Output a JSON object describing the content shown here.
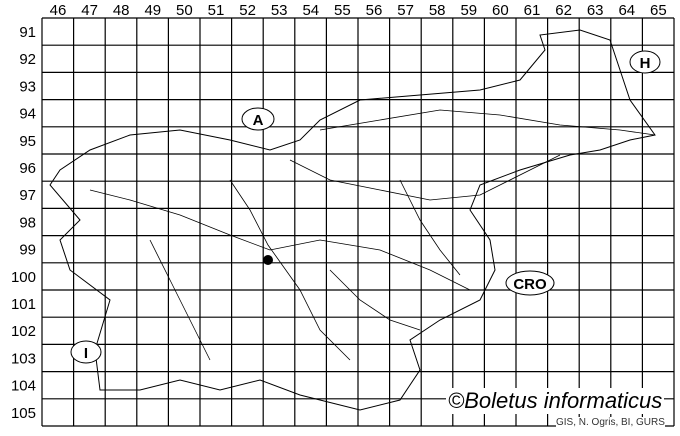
{
  "map": {
    "columns": [
      "46",
      "47",
      "48",
      "49",
      "50",
      "51",
      "52",
      "53",
      "54",
      "55",
      "56",
      "57",
      "58",
      "59",
      "60",
      "61",
      "62",
      "63",
      "64",
      "65"
    ],
    "rows": [
      "91",
      "92",
      "93",
      "94",
      "95",
      "96",
      "97",
      "98",
      "99",
      "100",
      "101",
      "102",
      "103",
      "104",
      "105"
    ],
    "labels": {
      "austria": "A",
      "hungary": "H",
      "croatia": "CRO",
      "italy": "I"
    },
    "credit": "©Boletus informaticus",
    "source": "GIS, N. Ogris, BI, GURS",
    "marker_color": "#000000"
  }
}
